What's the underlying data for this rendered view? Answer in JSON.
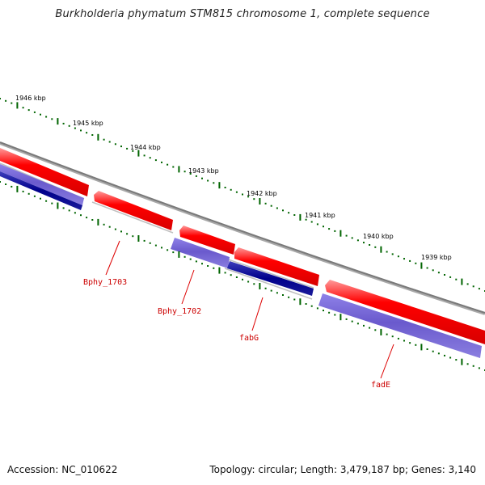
{
  "title": "Burkholderia phymatum STM815 chromosome 1, complete sequence",
  "kbp_labels": [
    "1946 kbp",
    "1945 kbp",
    "1944 kbp",
    "1943 kbp",
    "1942 kbp",
    "1941 kbp",
    "1940 kbp",
    "1939 kbp"
  ],
  "genes": [
    {
      "name": "Bphy_1703",
      "strand": "forward",
      "color": "#ff0000"
    },
    {
      "name": "Bphy_1702",
      "strand": "reverse",
      "color": "#6a5acd"
    },
    {
      "name": "fabG",
      "strand": "reverse",
      "color": "#00008b"
    },
    {
      "name": "fadE",
      "strand": "reverse",
      "color": "#6a5acd"
    }
  ],
  "colors": {
    "backbone": "#808080",
    "forward_gene": "#ff0000",
    "reverse_gene": "#6a5acd",
    "reverse_gene_dark": "#00008b",
    "tick": "#006400",
    "label": "#cc0000"
  },
  "footer": {
    "accession": "Accession: NC_010622",
    "stats": "Topology: circular; Length: 3,479,187 bp; Genes: 3,140"
  }
}
